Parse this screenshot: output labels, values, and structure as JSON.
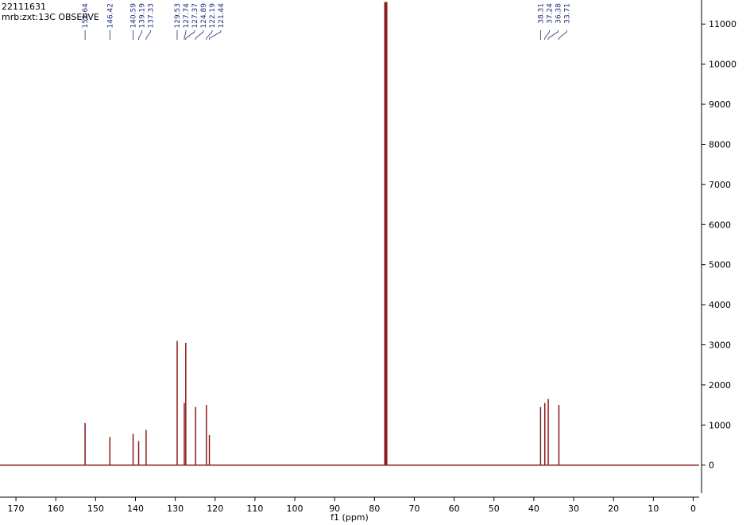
{
  "chart_data": {
    "type": "spectrum",
    "header": [
      "22111631",
      "mrb:zxt:13C OBSERVE"
    ],
    "xlabel": "f1 (ppm)",
    "xlim": [
      174,
      -1.5
    ],
    "ylim": [
      -700,
      11600
    ],
    "xticks": [
      170,
      160,
      150,
      140,
      130,
      120,
      110,
      100,
      90,
      80,
      70,
      60,
      50,
      40,
      30,
      20,
      10,
      0
    ],
    "yticks": [
      0,
      1000,
      2000,
      3000,
      4000,
      5000,
      6000,
      7000,
      8000,
      9000,
      10000,
      11000
    ],
    "color": "#8b1a1a",
    "label_color": "#1f2d7a",
    "peaks": {
      "x": [
        152.64,
        146.42,
        140.59,
        139.19,
        137.33,
        129.53,
        127.74,
        127.37,
        124.89,
        122.19,
        121.44,
        38.31,
        37.24,
        36.38,
        33.71
      ],
      "values": [
        1050,
        700,
        780,
        600,
        880,
        3100,
        1550,
        3050,
        1450,
        1500,
        750,
        1450,
        1550,
        1650,
        1500
      ]
    },
    "solvent": {
      "x": [
        77.41,
        77.16,
        76.91
      ],
      "values": [
        11550,
        11550,
        11550
      ]
    }
  }
}
